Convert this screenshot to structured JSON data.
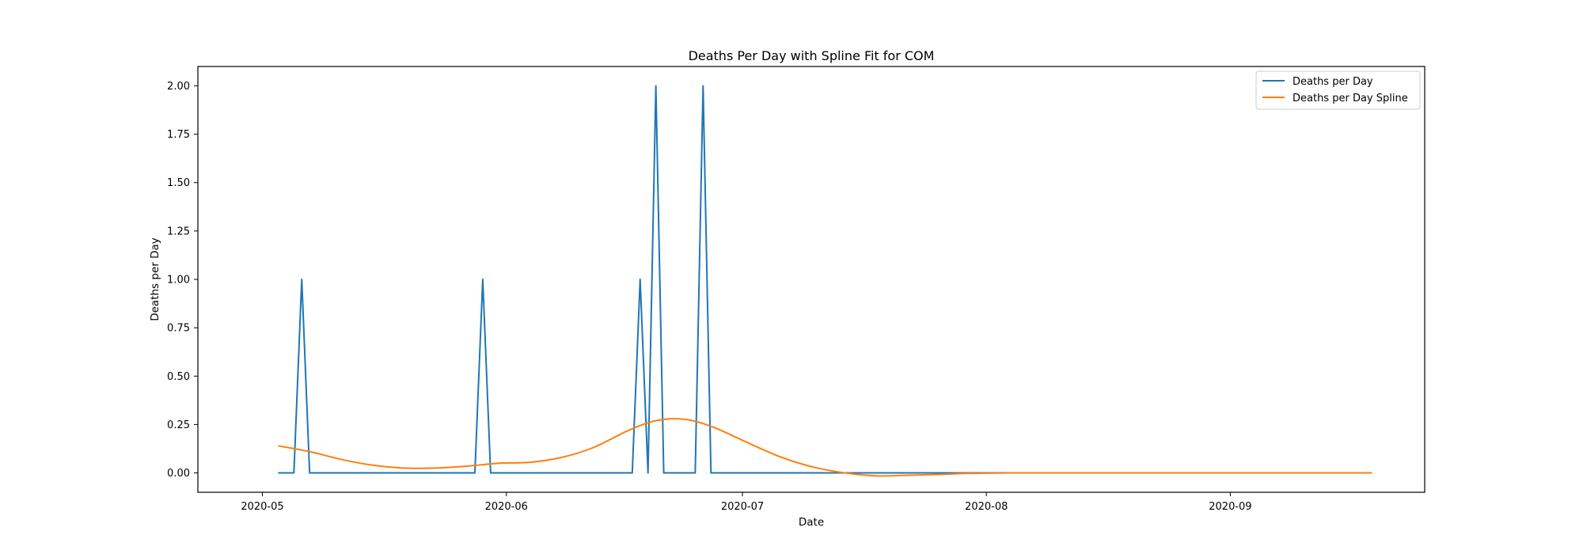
{
  "chart_data": {
    "type": "line",
    "title": "Deaths Per Day with Spline Fit for COM",
    "xlabel": "Date",
    "ylabel": "Deaths per Day",
    "x_start_date": "2020-05-03",
    "x_end_date": "2020-09-19",
    "xlim_days": [
      -8.2,
      147.7
    ],
    "ylim": [
      -0.1,
      2.1
    ],
    "x_ticks": [
      {
        "day": 0,
        "label": "2020-05"
      },
      {
        "day": 31,
        "label": "2020-06"
      },
      {
        "day": 61,
        "label": "2020-07"
      },
      {
        "day": 92,
        "label": "2020-08"
      },
      {
        "day": 123,
        "label": "2020-09"
      }
    ],
    "y_ticks": [
      {
        "value": 0.0,
        "label": "0.00"
      },
      {
        "value": 0.25,
        "label": "0.25"
      },
      {
        "value": 0.5,
        "label": "0.50"
      },
      {
        "value": 0.75,
        "label": "0.75"
      },
      {
        "value": 1.0,
        "label": "1.00"
      },
      {
        "value": 1.25,
        "label": "1.25"
      },
      {
        "value": 1.5,
        "label": "1.50"
      },
      {
        "value": 1.75,
        "label": "1.75"
      },
      {
        "value": 2.0,
        "label": "2.00"
      }
    ],
    "legend_position": "top-right",
    "series": [
      {
        "name": "Deaths per Day",
        "color": "#1f77b4",
        "style": "piecewise-linear",
        "x_days": [
          2,
          4,
          5,
          6,
          27,
          28,
          29,
          47,
          48,
          49,
          50,
          51,
          52,
          53,
          55,
          56,
          57,
          58,
          141
        ],
        "values": [
          0,
          0,
          1,
          0,
          0,
          1,
          0,
          0,
          1,
          0,
          2,
          0,
          0,
          0,
          0,
          2,
          0,
          0,
          0
        ]
      },
      {
        "name": "Deaths per Day Spline",
        "color": "#ff7f0e",
        "style": "smooth",
        "x_days": [
          2,
          6,
          10,
          14,
          18,
          22,
          26,
          30,
          34,
          38,
          42,
          46,
          48,
          50,
          52,
          54,
          56,
          58,
          62,
          66,
          70,
          74,
          78,
          82,
          86,
          90,
          95,
          100,
          110,
          125,
          141
        ],
        "values": [
          0.14,
          0.11,
          0.07,
          0.04,
          0.025,
          0.025,
          0.035,
          0.05,
          0.055,
          0.08,
          0.13,
          0.21,
          0.245,
          0.27,
          0.28,
          0.275,
          0.255,
          0.225,
          0.15,
          0.08,
          0.03,
          0.0,
          -0.015,
          -0.012,
          -0.008,
          -0.002,
          0.0,
          0.0,
          0.0,
          0.0,
          0.0
        ]
      }
    ]
  }
}
